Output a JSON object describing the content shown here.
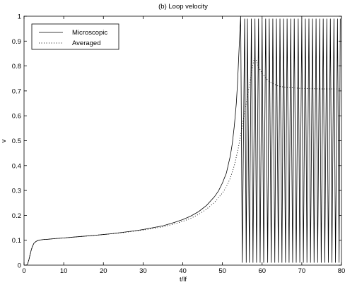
{
  "chart_data": {
    "type": "line",
    "title": "(b) Loop velocity",
    "xlabel": "t/lf",
    "ylabel": "v",
    "xlim": [
      0,
      80
    ],
    "ylim": [
      0,
      1
    ],
    "xticks": [
      0,
      10,
      20,
      30,
      40,
      50,
      60,
      70,
      80
    ],
    "yticks": [
      0,
      0.1,
      0.2,
      0.3,
      0.4,
      0.5,
      0.6,
      0.7,
      0.8,
      0.9,
      1
    ],
    "xtick_labels": [
      "0",
      "10",
      "20",
      "30",
      "40",
      "50",
      "60",
      "70",
      "80"
    ],
    "ytick_labels": [
      "0",
      "0.1",
      "0.2",
      "0.3",
      "0.4",
      "0.5",
      "0.6",
      "0.7",
      "0.8",
      "0.9",
      "1"
    ],
    "grid": false,
    "legend_position": "top-left",
    "series": [
      {
        "name": "Microscopic",
        "style": "solid",
        "color": "#000000",
        "x": [
          0.6,
          0.9,
          1.2,
          1.5,
          1.8,
          2.1,
          2.5,
          3,
          3.5,
          4,
          5,
          6,
          8,
          10,
          12,
          15,
          18,
          20,
          22,
          25,
          28,
          30,
          32,
          35,
          38,
          40,
          42,
          44,
          46,
          48,
          49,
          50,
          51,
          52,
          52.5,
          53,
          53.5,
          53.8,
          54,
          54.2,
          54.4,
          54.6
        ],
        "y": [
          0,
          0.005,
          0.02,
          0.04,
          0.06,
          0.075,
          0.088,
          0.095,
          0.099,
          0.101,
          0.103,
          0.104,
          0.107,
          0.109,
          0.112,
          0.116,
          0.12,
          0.123,
          0.126,
          0.132,
          0.138,
          0.143,
          0.149,
          0.158,
          0.172,
          0.183,
          0.197,
          0.215,
          0.24,
          0.275,
          0.298,
          0.33,
          0.37,
          0.44,
          0.49,
          0.56,
          0.65,
          0.73,
          0.8,
          0.87,
          0.94,
          1.0
        ],
        "oscillation": {
          "x_start": 54.6,
          "x_end": 79.7,
          "low": 0.01,
          "high": 0.99,
          "spike_x": [
            55.0,
            55.6,
            56.0,
            56.3,
            56.8,
            57.3,
            57.7,
            58.2,
            58.6,
            59.1,
            59.5,
            60.0,
            60.4,
            60.9,
            61.4,
            61.8,
            62.3,
            62.7,
            63.2,
            63.6,
            64.1,
            64.5,
            65.0,
            65.4,
            65.9,
            66.3,
            66.8,
            67.2,
            67.7,
            68.1,
            68.6,
            69.1,
            69.5,
            70.0,
            70.4,
            70.9,
            71.3,
            71.8,
            72.2,
            72.7,
            73.1,
            73.6,
            74.0,
            74.5,
            74.9,
            75.4,
            75.8,
            76.3,
            76.7,
            77.2,
            77.6,
            78.1,
            78.5,
            79.0,
            79.4
          ]
        }
      },
      {
        "name": "Averaged",
        "style": "dotted",
        "color": "#000000",
        "x": [
          0.6,
          0.9,
          1.2,
          1.5,
          1.8,
          2.1,
          2.5,
          3,
          3.5,
          4,
          5,
          6,
          8,
          10,
          12,
          15,
          18,
          20,
          22,
          25,
          28,
          30,
          32,
          35,
          38,
          40,
          42,
          44,
          46,
          48,
          50,
          51,
          52,
          53,
          54,
          55,
          56,
          57,
          57.5,
          58,
          58.5,
          59,
          60,
          61,
          62,
          64,
          66,
          70,
          75,
          80
        ],
        "y": [
          0,
          0.005,
          0.02,
          0.04,
          0.06,
          0.075,
          0.088,
          0.095,
          0.099,
          0.101,
          0.103,
          0.104,
          0.107,
          0.109,
          0.112,
          0.116,
          0.12,
          0.123,
          0.126,
          0.131,
          0.137,
          0.141,
          0.146,
          0.154,
          0.166,
          0.176,
          0.188,
          0.204,
          0.225,
          0.252,
          0.29,
          0.315,
          0.35,
          0.4,
          0.47,
          0.56,
          0.65,
          0.74,
          0.79,
          0.83,
          0.825,
          0.8,
          0.77,
          0.75,
          0.735,
          0.72,
          0.714,
          0.71,
          0.708,
          0.708
        ]
      }
    ]
  }
}
